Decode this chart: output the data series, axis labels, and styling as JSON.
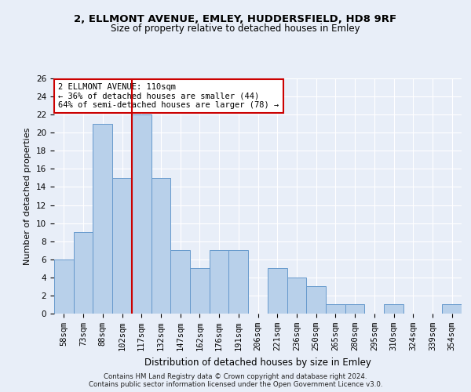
{
  "title1": "2, ELLMONT AVENUE, EMLEY, HUDDERSFIELD, HD8 9RF",
  "title2": "Size of property relative to detached houses in Emley",
  "xlabel": "Distribution of detached houses by size in Emley",
  "ylabel": "Number of detached properties",
  "categories": [
    "58sqm",
    "73sqm",
    "88sqm",
    "102sqm",
    "117sqm",
    "132sqm",
    "147sqm",
    "162sqm",
    "176sqm",
    "191sqm",
    "206sqm",
    "221sqm",
    "236sqm",
    "250sqm",
    "265sqm",
    "280sqm",
    "295sqm",
    "310sqm",
    "324sqm",
    "339sqm",
    "354sqm"
  ],
  "values": [
    6,
    9,
    21,
    15,
    22,
    15,
    7,
    5,
    7,
    7,
    0,
    5,
    4,
    3,
    1,
    1,
    0,
    1,
    0,
    0,
    1
  ],
  "bar_color": "#b8d0ea",
  "bar_edge_color": "#6699cc",
  "property_line_x": 3.5,
  "property_line_color": "#cc0000",
  "annotation_text": "2 ELLMONT AVENUE: 110sqm\n← 36% of detached houses are smaller (44)\n64% of semi-detached houses are larger (78) →",
  "annotation_box_facecolor": "#ffffff",
  "annotation_box_edgecolor": "#cc0000",
  "ylim": [
    0,
    26
  ],
  "yticks": [
    0,
    2,
    4,
    6,
    8,
    10,
    12,
    14,
    16,
    18,
    20,
    22,
    24,
    26
  ],
  "footer1": "Contains HM Land Registry data © Crown copyright and database right 2024.",
  "footer2": "Contains public sector information licensed under the Open Government Licence v3.0.",
  "bg_color": "#e8eef8",
  "plot_bg_color": "#e8eef8",
  "title1_fontsize": 9.5,
  "title2_fontsize": 8.5,
  "xlabel_fontsize": 8.5,
  "ylabel_fontsize": 8,
  "tick_fontsize": 7.5,
  "annot_fontsize": 7.5,
  "footer_fontsize": 6.2
}
